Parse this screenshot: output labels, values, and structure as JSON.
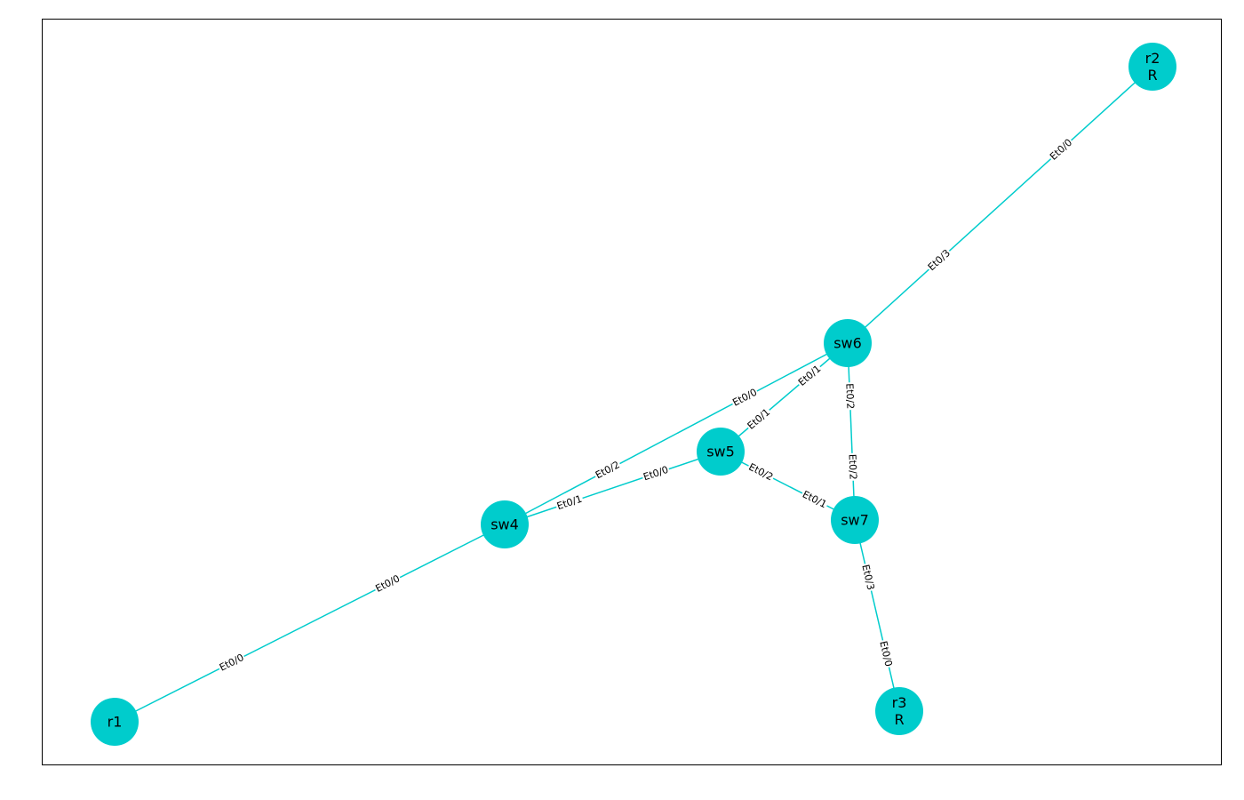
{
  "colors": {
    "node": "#00cccc",
    "edge": "#00cccc",
    "frame": "#000000",
    "background": "#ffffff"
  },
  "nodes": [
    {
      "id": "r2",
      "lines": [
        "r2",
        "R"
      ]
    },
    {
      "id": "sw6",
      "lines": [
        "sw6"
      ]
    },
    {
      "id": "sw5",
      "lines": [
        "sw5"
      ]
    },
    {
      "id": "sw4",
      "lines": [
        "sw4"
      ]
    },
    {
      "id": "sw7",
      "lines": [
        "sw7"
      ]
    },
    {
      "id": "r1",
      "lines": [
        "r1"
      ]
    },
    {
      "id": "r3",
      "lines": [
        "r3",
        "R"
      ]
    }
  ],
  "links": [
    {
      "from": "r2",
      "to": "sw6",
      "from_port": "Et0/0",
      "to_port": "Et0/3"
    },
    {
      "from": "sw6",
      "to": "sw4",
      "from_port": "Et0/0",
      "to_port": "Et0/2"
    },
    {
      "from": "sw6",
      "to": "sw5",
      "from_port": "Et0/1",
      "to_port": "Et0/1"
    },
    {
      "from": "sw6",
      "to": "sw7",
      "from_port": "Et0/2",
      "to_port": "Et0/2"
    },
    {
      "from": "sw5",
      "to": "sw4",
      "from_port": "Et0/0",
      "to_port": "Et0/1"
    },
    {
      "from": "sw5",
      "to": "sw7",
      "from_port": "Et0/2",
      "to_port": "Et0/1"
    },
    {
      "from": "sw4",
      "to": "r1",
      "from_port": "Et0/0",
      "to_port": "Et0/0"
    },
    {
      "from": "sw7",
      "to": "r3",
      "from_port": "Et0/3",
      "to_port": "Et0/0"
    }
  ]
}
